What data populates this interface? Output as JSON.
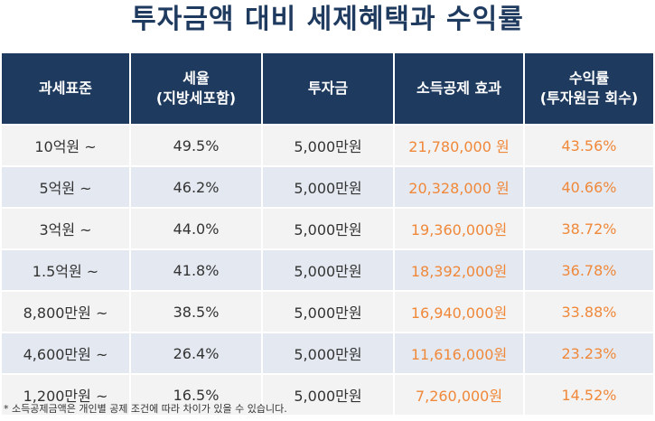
{
  "title": "투자금액 대비 세제혜택과 수익률",
  "colors": {
    "header_bg": "#1f3a5f",
    "title": "#1f3a5f",
    "row_light": "#f3f3f3",
    "row_tint": "#e4e9f1",
    "accent_orange": "#f0883a"
  },
  "table": {
    "headers": [
      {
        "line1": "과세표준",
        "line2": ""
      },
      {
        "line1": "세율",
        "line2": "(지방세포함)"
      },
      {
        "line1": "투자금",
        "line2": ""
      },
      {
        "line1": "소득공제 효과",
        "line2": ""
      },
      {
        "line1": "수익률",
        "line2": "(투자원금 회수)"
      }
    ],
    "rows": [
      {
        "base": "10억원 ~",
        "rate": "49.5%",
        "investment": "5,000만원",
        "deduction": "21,780,000 원",
        "return": "43.56%"
      },
      {
        "base": "5억원 ~",
        "rate": "46.2%",
        "investment": "5,000만원",
        "deduction": "20,328,000 원",
        "return": "40.66%"
      },
      {
        "base": "3억원 ~",
        "rate": "44.0%",
        "investment": "5,000만원",
        "deduction": "19,360,000원",
        "return": "38.72%"
      },
      {
        "base": "1.5억원 ~",
        "rate": "41.8%",
        "investment": "5,000만원",
        "deduction": "18,392,000원",
        "return": "36.78%"
      },
      {
        "base": "8,800만원 ~",
        "rate": "38.5%",
        "investment": "5,000만원",
        "deduction": "16,940,000원",
        "return": "33.88%"
      },
      {
        "base": "4,600만원 ~",
        "rate": "26.4%",
        "investment": "5,000만원",
        "deduction": "11,616,000원",
        "return": "23.23%"
      },
      {
        "base": "1,200만원 ~",
        "rate": "16.5%",
        "investment": "5,000만원",
        "deduction": "7,260,000원",
        "return": "14.52%"
      }
    ]
  },
  "footnote": "* 소득공제금액은 개인별 공제 조건에 따라 차이가 있을 수 있습니다."
}
